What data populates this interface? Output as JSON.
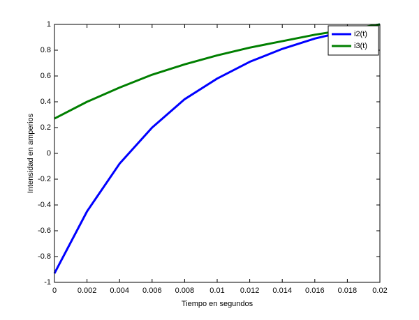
{
  "chart_data": {
    "type": "line",
    "xlabel": "Tiempo en segundos",
    "ylabel": "Intensidad en amperios",
    "x": [
      0,
      0.002,
      0.004,
      0.006,
      0.008,
      0.01,
      0.012,
      0.014,
      0.016,
      0.018,
      0.02
    ],
    "series": [
      {
        "name": "i2(t)",
        "color": "#0000ff",
        "values": [
          -0.93,
          -0.45,
          -0.08,
          0.2,
          0.42,
          0.58,
          0.71,
          0.81,
          0.89,
          0.95,
          1.0
        ]
      },
      {
        "name": "i3(t)",
        "color": "#007f00",
        "values": [
          0.27,
          0.4,
          0.51,
          0.61,
          0.69,
          0.76,
          0.82,
          0.87,
          0.92,
          0.96,
          1.0
        ]
      }
    ],
    "xlim": [
      0,
      0.02
    ],
    "ylim": [
      -1,
      1
    ],
    "xticks": [
      0,
      0.002,
      0.004,
      0.006,
      0.008,
      0.01,
      0.012,
      0.014,
      0.016,
      0.018,
      0.02
    ],
    "yticks": [
      -1,
      -0.8,
      -0.6,
      -0.4,
      -0.2,
      0,
      0.2,
      0.4,
      0.6,
      0.8,
      1
    ],
    "grid": false,
    "legend": "upper right"
  }
}
